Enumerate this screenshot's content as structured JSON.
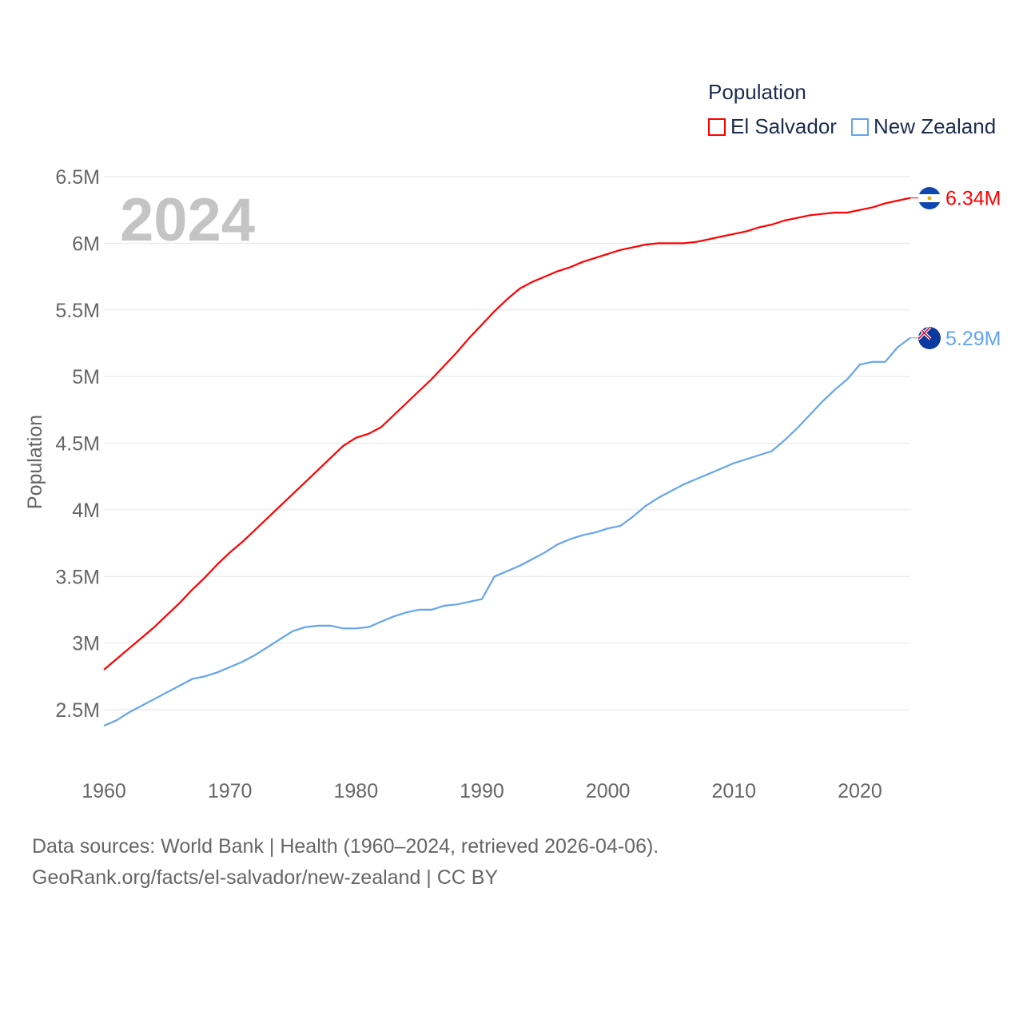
{
  "chart_data": {
    "type": "line",
    "title": "Population",
    "year_label": "2024",
    "ylabel": "Population",
    "xlabel": "",
    "xlim": [
      1960,
      2024
    ],
    "ylim": [
      2.25,
      6.5
    ],
    "x_ticks": [
      "1960",
      "1970",
      "1980",
      "1990",
      "2000",
      "2010",
      "2020"
    ],
    "x_tick_values": [
      1960,
      1970,
      1980,
      1990,
      2000,
      2010,
      2020
    ],
    "y_ticks": [
      "2.5M",
      "3M",
      "3.5M",
      "4M",
      "4.5M",
      "5M",
      "5.5M",
      "6M",
      "6.5M"
    ],
    "y_tick_values": [
      2.5,
      3,
      3.5,
      4,
      4.5,
      5,
      5.5,
      6,
      6.5
    ],
    "grid": true,
    "legend_position": "top-right",
    "x": [
      1960,
      1961,
      1962,
      1963,
      1964,
      1965,
      1966,
      1967,
      1968,
      1969,
      1970,
      1971,
      1972,
      1973,
      1974,
      1975,
      1976,
      1977,
      1978,
      1979,
      1980,
      1981,
      1982,
      1983,
      1984,
      1985,
      1986,
      1987,
      1988,
      1989,
      1990,
      1991,
      1992,
      1993,
      1994,
      1995,
      1996,
      1997,
      1998,
      1999,
      2000,
      2001,
      2002,
      2003,
      2004,
      2005,
      2006,
      2007,
      2008,
      2009,
      2010,
      2011,
      2012,
      2013,
      2014,
      2015,
      2016,
      2017,
      2018,
      2019,
      2020,
      2021,
      2022,
      2023,
      2024
    ],
    "series": [
      {
        "name": "El Salvador",
        "color": "#ff0000",
        "end_label": "6.34M",
        "values": [
          2.8,
          2.88,
          2.96,
          3.04,
          3.12,
          3.21,
          3.3,
          3.4,
          3.49,
          3.59,
          3.68,
          3.76,
          3.85,
          3.94,
          4.03,
          4.12,
          4.21,
          4.3,
          4.39,
          4.48,
          4.54,
          4.57,
          4.62,
          4.71,
          4.8,
          4.89,
          4.98,
          5.08,
          5.18,
          5.29,
          5.39,
          5.49,
          5.58,
          5.66,
          5.71,
          5.75,
          5.79,
          5.82,
          5.86,
          5.89,
          5.92,
          5.95,
          5.97,
          5.99,
          6.0,
          6.0,
          6.0,
          6.01,
          6.03,
          6.05,
          6.07,
          6.09,
          6.12,
          6.14,
          6.17,
          6.19,
          6.21,
          6.22,
          6.23,
          6.23,
          6.25,
          6.27,
          6.3,
          6.32,
          6.34
        ]
      },
      {
        "name": "New Zealand",
        "color": "#63a5ee",
        "end_label": "5.29M",
        "values": [
          2.38,
          2.42,
          2.48,
          2.53,
          2.58,
          2.63,
          2.68,
          2.73,
          2.75,
          2.78,
          2.82,
          2.86,
          2.91,
          2.97,
          3.03,
          3.09,
          3.12,
          3.13,
          3.13,
          3.11,
          3.11,
          3.12,
          3.16,
          3.2,
          3.23,
          3.25,
          3.25,
          3.28,
          3.29,
          3.31,
          3.33,
          3.5,
          3.54,
          3.58,
          3.63,
          3.68,
          3.74,
          3.78,
          3.81,
          3.83,
          3.86,
          3.88,
          3.95,
          4.03,
          4.09,
          4.14,
          4.19,
          4.23,
          4.27,
          4.31,
          4.35,
          4.38,
          4.41,
          4.44,
          4.52,
          4.61,
          4.71,
          4.81,
          4.9,
          4.98,
          5.09,
          5.11,
          5.11,
          5.22,
          5.29
        ]
      }
    ]
  },
  "footer": {
    "line1": "Data sources: World Bank | Health (1960–2024, retrieved 2026-04-06).",
    "line2": "GeoRank.org/facts/el-salvador/new-zealand | CC BY"
  }
}
